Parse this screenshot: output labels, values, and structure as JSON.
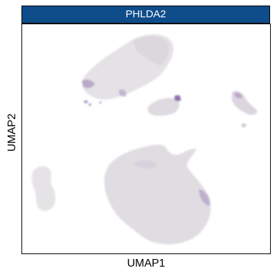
{
  "chart_data": {
    "type": "scatter",
    "title": "PHLDA2",
    "xlabel": "UMAP1",
    "ylabel": "UMAP2",
    "grid": false,
    "legend": "none",
    "colors": {
      "header_bg": "#0f4c8a",
      "low": "#dcdcdc",
      "high": "#6a3d8f"
    }
  }
}
